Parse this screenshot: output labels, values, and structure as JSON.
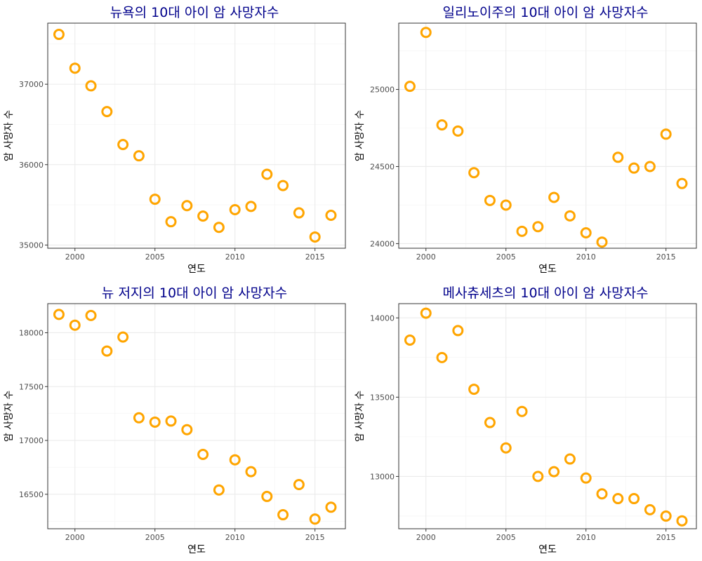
{
  "chart_data": [
    {
      "type": "scatter",
      "title": "뉴욕의 10대 아이 암 사망자수",
      "xlabel": "연도",
      "ylabel": "암 사망자 수",
      "x": [
        1999,
        2000,
        2001,
        2002,
        2003,
        2004,
        2005,
        2006,
        2007,
        2008,
        2009,
        2010,
        2011,
        2012,
        2013,
        2014,
        2015,
        2016
      ],
      "y": [
        37620,
        37200,
        36980,
        36660,
        36250,
        36110,
        35570,
        35290,
        35490,
        35360,
        35220,
        35440,
        35480,
        35880,
        35740,
        35400,
        35100,
        35370
      ],
      "xlim": [
        1998.3,
        2016.9
      ],
      "ylim": [
        34960,
        37760
      ],
      "xticks": [
        "2000",
        "2005",
        "2010",
        "2015"
      ],
      "yticks": [
        "35000",
        "36000",
        "37000"
      ],
      "grid": true,
      "marker_color": "#ffa500"
    },
    {
      "type": "scatter",
      "title": "일리노이주의 10대 아이 암 사망자수",
      "xlabel": "연도",
      "ylabel": "암 사망자 수",
      "x": [
        1999,
        2000,
        2001,
        2002,
        2003,
        2004,
        2005,
        2006,
        2007,
        2008,
        2009,
        2010,
        2011,
        2012,
        2013,
        2014,
        2015,
        2016
      ],
      "y": [
        25020,
        25370,
        24770,
        24730,
        24460,
        24280,
        24250,
        24080,
        24110,
        24300,
        24180,
        24070,
        24010,
        24560,
        24490,
        24500,
        24710,
        24390
      ],
      "xlim": [
        1998.3,
        2016.9
      ],
      "ylim": [
        23970,
        25430
      ],
      "xticks": [
        "2000",
        "2005",
        "2010",
        "2015"
      ],
      "yticks": [
        "24000",
        "24500",
        "25000"
      ],
      "grid": true,
      "marker_color": "#ffa500"
    },
    {
      "type": "scatter",
      "title": "뉴 저지의 10대 아이 암 사망자수",
      "xlabel": "연도",
      "ylabel": "암 사망자 수",
      "x": [
        1999,
        2000,
        2001,
        2002,
        2003,
        2004,
        2005,
        2006,
        2007,
        2008,
        2009,
        2010,
        2011,
        2012,
        2013,
        2014,
        2015,
        2016
      ],
      "y": [
        18170,
        18070,
        18160,
        17830,
        17960,
        17210,
        17170,
        17180,
        17100,
        16870,
        16540,
        16820,
        16710,
        16480,
        16310,
        16590,
        16270,
        16380
      ],
      "xlim": [
        1998.3,
        2016.9
      ],
      "ylim": [
        16180,
        18270
      ],
      "xticks": [
        "2000",
        "2005",
        "2010",
        "2015"
      ],
      "yticks": [
        "16500",
        "17000",
        "17500",
        "18000"
      ],
      "grid": true,
      "marker_color": "#ffa500"
    },
    {
      "type": "scatter",
      "title": "메사츄세츠의 10대 아이 암 사망자수",
      "xlabel": "연도",
      "ylabel": "암 사망자 수",
      "x": [
        1999,
        2000,
        2001,
        2002,
        2003,
        2004,
        2005,
        2006,
        2007,
        2008,
        2009,
        2010,
        2011,
        2012,
        2013,
        2014,
        2015,
        2016
      ],
      "y": [
        13860,
        14030,
        13750,
        13920,
        13550,
        13340,
        13180,
        13410,
        13000,
        13030,
        13110,
        12990,
        12890,
        12860,
        12860,
        12790,
        12750,
        12720
      ],
      "xlim": [
        1998.3,
        2016.9
      ],
      "ylim": [
        12670,
        14090
      ],
      "xticks": [
        "2000",
        "2005",
        "2010",
        "2015"
      ],
      "yticks": [
        "13000",
        "13500",
        "14000"
      ],
      "grid": true,
      "marker_color": "#ffa500"
    }
  ]
}
